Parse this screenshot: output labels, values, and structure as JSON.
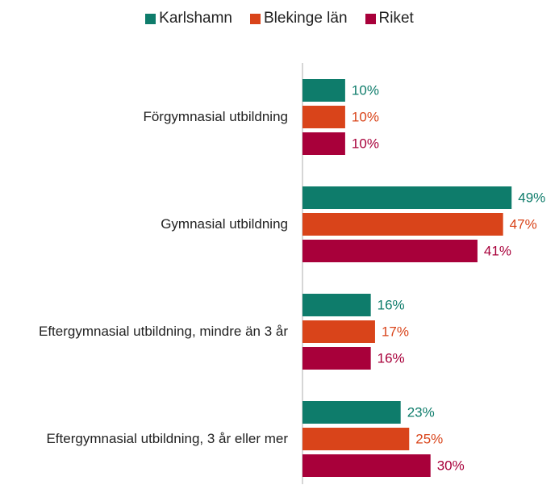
{
  "chart_data": {
    "type": "bar",
    "orientation": "horizontal",
    "categories": [
      "Förgymnasial utbildning",
      "Gymnasial utbildning",
      "Eftergymnasial utbildning, mindre än 3 år",
      "Eftergymnasial utbildning, 3 år eller mer"
    ],
    "series": [
      {
        "name": "Karlshamn",
        "color": "#0e7c6b",
        "values": [
          10,
          49,
          16,
          23
        ],
        "value_labels": [
          "10%",
          "49%",
          "16%",
          "23%"
        ]
      },
      {
        "name": "Blekinge län",
        "color": "#d9441a",
        "values": [
          10,
          47,
          17,
          25
        ],
        "value_labels": [
          "10%",
          "47%",
          "17%",
          "25%"
        ]
      },
      {
        "name": "Riket",
        "color": "#a8003a",
        "values": [
          10,
          41,
          16,
          30
        ],
        "value_labels": [
          "10%",
          "41%",
          "16%",
          "30%"
        ]
      }
    ],
    "xlim": [
      0,
      55
    ],
    "legend": "top"
  }
}
